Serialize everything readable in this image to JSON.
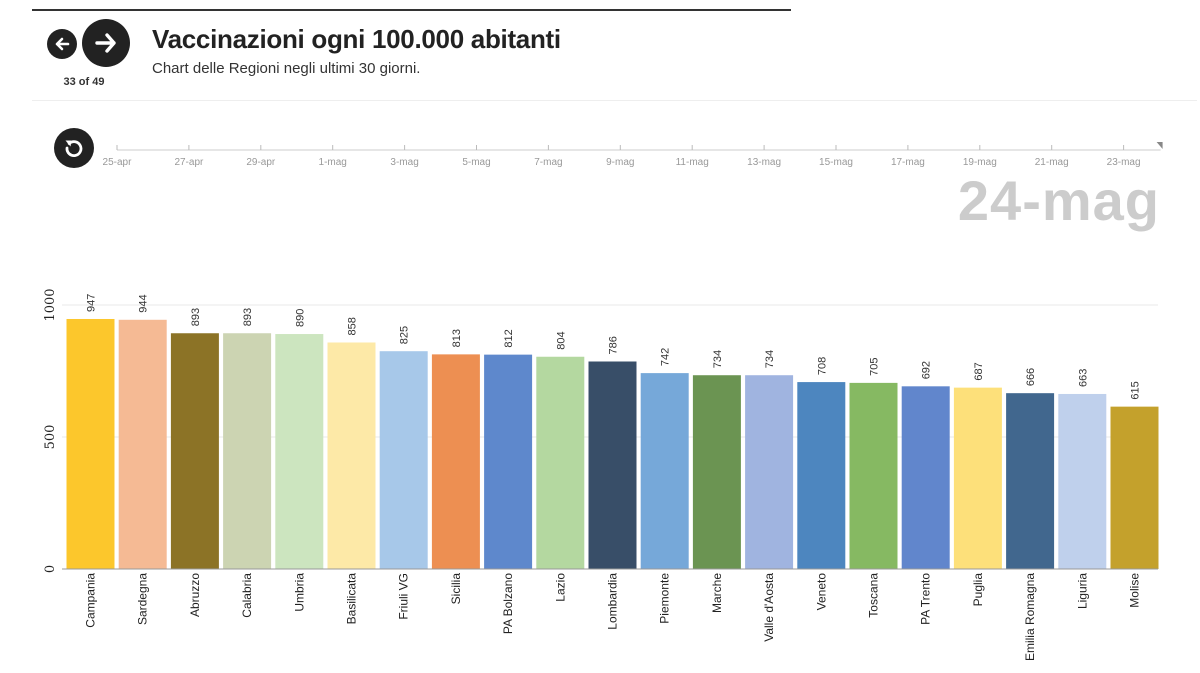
{
  "header": {
    "title": "Vaccinazioni ogni 100.000 abitanti",
    "subtitle": "Chart delle Regioni negli ultimi 30 giorni.",
    "counter": "33 of 49"
  },
  "timeline": {
    "ticks": [
      "25-apr",
      "27-apr",
      "29-apr",
      "1-mag",
      "3-mag",
      "5-mag",
      "7-mag",
      "9-mag",
      "11-mag",
      "13-mag",
      "15-mag",
      "17-mag",
      "19-mag",
      "21-mag",
      "23-mag"
    ],
    "current_date": "24-mag"
  },
  "chart_data": {
    "type": "bar",
    "title": "Vaccinazioni ogni 100.000 abitanti",
    "categories": [
      "Campania",
      "Sardegna",
      "Abruzzo",
      "Calabria",
      "Umbria",
      "Basilicata",
      "Friuli VG",
      "Sicilia",
      "PA Bolzano",
      "Lazio",
      "Lombardia",
      "Piemonte",
      "Marche",
      "Valle d'Aosta",
      "Veneto",
      "Toscana",
      "PA Trento",
      "Puglia",
      "Emilia Romagna",
      "Liguria",
      "Molise"
    ],
    "values": [
      947,
      944,
      893,
      893,
      890,
      858,
      825,
      813,
      812,
      804,
      786,
      742,
      734,
      734,
      708,
      705,
      692,
      687,
      666,
      663,
      615
    ],
    "colors": [
      "#fcc72c",
      "#f5ba94",
      "#8c7326",
      "#ccd4b2",
      "#cce5bf",
      "#fde9a7",
      "#a7c8e9",
      "#ed8f52",
      "#5e88cc",
      "#b4d8a0",
      "#384e68",
      "#76a8d9",
      "#6b9452",
      "#a0b4e0",
      "#4d86bf",
      "#86b962",
      "#6186cc",
      "#fde07a",
      "#41678e",
      "#bfd0ec",
      "#c4a12c"
    ],
    "ylim": [
      0,
      1000
    ],
    "yticks": [
      0,
      500,
      1000
    ],
    "xlabel": "",
    "ylabel": ""
  }
}
